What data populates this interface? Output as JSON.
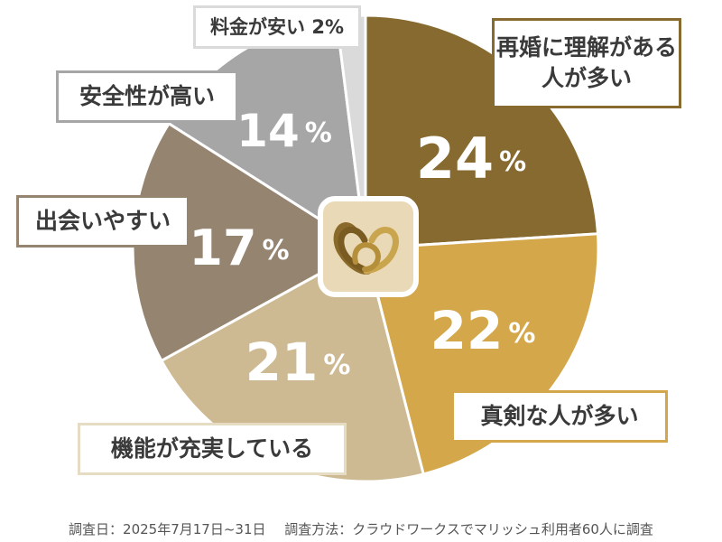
{
  "chart_data": {
    "type": "pie",
    "slices": [
      {
        "label": "再婚に理解がある人が多い",
        "value": 24,
        "color": "#866a2f"
      },
      {
        "label": "真剣な人が多い",
        "value": 22,
        "color": "#d4a74a"
      },
      {
        "label": "機能が充実している",
        "value": 21,
        "color": "#cdba92"
      },
      {
        "label": "出会いやすい",
        "value": 17,
        "color": "#958470"
      },
      {
        "label": "安全性が高い",
        "value": 14,
        "color": "#a6a6a6"
      },
      {
        "label": "料金が安い",
        "value": 2,
        "color": "#dadada"
      }
    ],
    "unit": "%"
  },
  "labels": {
    "label0": "再婚に理解がある人が多い",
    "label1": "真剣な人が多い",
    "label2": "機能が充実している",
    "label3": "出会いやすい",
    "label4": "安全性が高い",
    "label5": "料金が安い 2%"
  },
  "footnote": {
    "date": "調査日：2025年7月17日~31日",
    "method": "調査方法：クラウドワークスでマリッシュ利用者60人に調査"
  },
  "logo": {
    "name": "interlocking-rings-logo",
    "bg": "#ead9b6",
    "border": "#ffffff"
  }
}
